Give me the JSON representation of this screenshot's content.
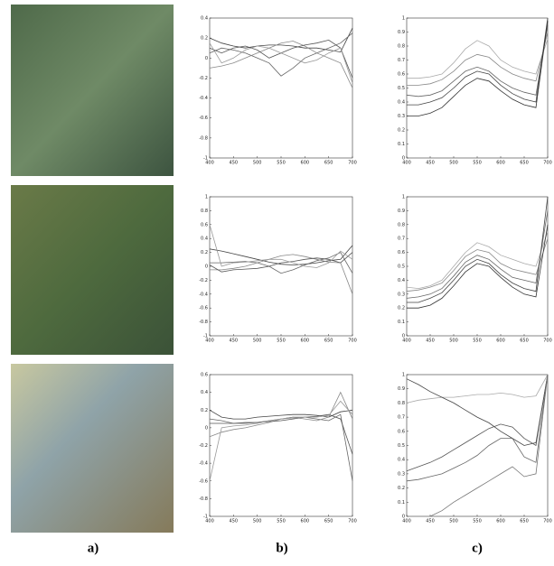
{
  "panel_labels": [
    "a)",
    "b)",
    "c)"
  ],
  "chart_data": [
    {
      "type": "line",
      "x": [
        400,
        425,
        450,
        475,
        500,
        525,
        550,
        575,
        600,
        625,
        650,
        675,
        700
      ],
      "xlim": [
        400,
        700
      ],
      "xticks": [
        400,
        450,
        500,
        550,
        600,
        650,
        700
      ],
      "ylim": [
        -1,
        0.4
      ],
      "yticks": [
        -1,
        -0.8,
        -0.6,
        -0.4,
        -0.2,
        0,
        0.2,
        0.4
      ],
      "series": [
        {
          "color": "#444",
          "values": [
            0.2,
            0.15,
            0.12,
            0.1,
            0.12,
            0.13,
            0.13,
            0.12,
            0.1,
            0.1,
            0.08,
            0.06,
            0.3
          ]
        },
        {
          "color": "#666",
          "values": [
            0.05,
            0.1,
            0.08,
            0.05,
            0,
            -0.05,
            -0.18,
            -0.1,
            0,
            0.05,
            0.1,
            0.15,
            0.25
          ]
        },
        {
          "color": "#888",
          "values": [
            -0.1,
            -0.08,
            -0.05,
            0,
            0.05,
            0.1,
            0.15,
            0.17,
            0.12,
            0.05,
            0,
            -0.05,
            -0.3
          ]
        },
        {
          "color": "#555",
          "values": [
            0.1,
            0.05,
            0.1,
            0.12,
            0.08,
            0,
            0.05,
            0.1,
            0.13,
            0.15,
            0.18,
            0.1,
            -0.2
          ]
        },
        {
          "color": "#999",
          "values": [
            0.15,
            -0.05,
            0,
            0.08,
            0.12,
            0.1,
            0.05,
            0,
            -0.05,
            -0.02,
            0.05,
            0.1,
            -0.25
          ]
        }
      ]
    },
    {
      "type": "line",
      "x": [
        400,
        425,
        450,
        475,
        500,
        525,
        550,
        575,
        600,
        625,
        650,
        675,
        700
      ],
      "xlim": [
        400,
        700
      ],
      "xticks": [
        400,
        450,
        500,
        550,
        600,
        650,
        700
      ],
      "ylim": [
        -1,
        1
      ],
      "yticks": [
        -1,
        -0.8,
        -0.6,
        -0.4,
        -0.2,
        0,
        0.2,
        0.4,
        0.6,
        0.8,
        1
      ],
      "series": [
        {
          "color": "#444",
          "values": [
            0.25,
            0.22,
            0.18,
            0.14,
            0.1,
            0.06,
            0.03,
            0.02,
            0.03,
            0.05,
            0.08,
            0.1,
            0.3
          ]
        },
        {
          "color": "#666",
          "values": [
            0.05,
            0.05,
            0.06,
            0.07,
            0.05,
            0,
            -0.1,
            -0.05,
            0.02,
            0.08,
            0.12,
            0.2,
            -0.1
          ]
        },
        {
          "color": "#888",
          "values": [
            -0.05,
            -0.05,
            -0.03,
            0,
            0.05,
            0.1,
            0.15,
            0.17,
            0.14,
            0.1,
            0.06,
            0.05,
            -0.4
          ]
        },
        {
          "color": "#555",
          "values": [
            0.02,
            -0.08,
            -0.05,
            -0.04,
            -0.03,
            0,
            0.05,
            0.07,
            0.1,
            0.12,
            0.1,
            0.05,
            0.2
          ]
        },
        {
          "color": "#999",
          "values": [
            0.6,
            0,
            0.05,
            0.06,
            0.08,
            0.1,
            0.1,
            0.05,
            0,
            -0.02,
            0.05,
            0.22,
            0.1
          ]
        }
      ]
    },
    {
      "type": "line",
      "x": [
        400,
        425,
        450,
        475,
        500,
        525,
        550,
        575,
        600,
        625,
        650,
        675,
        700
      ],
      "xlim": [
        400,
        700
      ],
      "xticks": [
        400,
        450,
        500,
        550,
        600,
        650,
        700
      ],
      "ylim": [
        -1,
        0.6
      ],
      "yticks": [
        -1,
        -0.8,
        -0.6,
        -0.4,
        -0.2,
        0,
        0.2,
        0.4,
        0.6
      ],
      "series": [
        {
          "color": "#444",
          "values": [
            0.2,
            0.12,
            0.1,
            0.1,
            0.12,
            0.13,
            0.14,
            0.15,
            0.15,
            0.14,
            0.12,
            0.18,
            0.2
          ]
        },
        {
          "color": "#666",
          "values": [
            0.1,
            0.08,
            0.05,
            0.05,
            0.06,
            0.08,
            0.1,
            0.12,
            0.12,
            0.1,
            0.08,
            0.15,
            -0.6
          ]
        },
        {
          "color": "#888",
          "values": [
            -0.1,
            -0.05,
            -0.02,
            0,
            0.03,
            0.06,
            0.1,
            0.12,
            0.1,
            0.08,
            0.12,
            0.4,
            0.1
          ]
        },
        {
          "color": "#555",
          "values": [
            0.05,
            0.05,
            0.05,
            0.06,
            0.06,
            0.07,
            0.08,
            0.1,
            0.12,
            0.13,
            0.15,
            0.1,
            -0.3
          ]
        },
        {
          "color": "#999",
          "values": [
            -0.6,
            0,
            0.02,
            0.03,
            0.05,
            0.08,
            0.1,
            0.11,
            0.12,
            0.12,
            0.14,
            0.3,
            0.15
          ]
        }
      ]
    },
    {
      "type": "line",
      "x": [
        400,
        425,
        450,
        475,
        500,
        525,
        550,
        575,
        600,
        625,
        650,
        675,
        700
      ],
      "xlim": [
        400,
        700
      ],
      "xticks": [
        400,
        450,
        500,
        550,
        600,
        650,
        700
      ],
      "ylim": [
        0,
        1
      ],
      "yticks": [
        0,
        0.1,
        0.2,
        0.3,
        0.4,
        0.5,
        0.6,
        0.7,
        0.8,
        0.9,
        1
      ],
      "series": [
        {
          "color": "#aaa",
          "values": [
            0.57,
            0.57,
            0.58,
            0.6,
            0.68,
            0.78,
            0.84,
            0.8,
            0.7,
            0.65,
            0.62,
            0.6,
            0.85
          ]
        },
        {
          "color": "#888",
          "values": [
            0.52,
            0.52,
            0.53,
            0.56,
            0.62,
            0.7,
            0.74,
            0.72,
            0.65,
            0.6,
            0.57,
            0.55,
            0.9
          ]
        },
        {
          "color": "#666",
          "values": [
            0.45,
            0.44,
            0.45,
            0.48,
            0.55,
            0.62,
            0.65,
            0.62,
            0.55,
            0.5,
            0.47,
            0.45,
            0.95
          ]
        },
        {
          "color": "#444",
          "values": [
            0.38,
            0.38,
            0.4,
            0.43,
            0.5,
            0.58,
            0.62,
            0.6,
            0.52,
            0.46,
            0.42,
            0.4,
            1
          ]
        },
        {
          "color": "#333",
          "values": [
            0.3,
            0.3,
            0.32,
            0.36,
            0.44,
            0.52,
            0.57,
            0.55,
            0.48,
            0.42,
            0.38,
            0.36,
            0.98
          ]
        }
      ]
    },
    {
      "type": "line",
      "x": [
        400,
        425,
        450,
        475,
        500,
        525,
        550,
        575,
        600,
        625,
        650,
        675,
        700
      ],
      "xlim": [
        400,
        700
      ],
      "xticks": [
        400,
        450,
        500,
        550,
        600,
        650,
        700
      ],
      "ylim": [
        0,
        1
      ],
      "yticks": [
        0,
        0.1,
        0.2,
        0.3,
        0.4,
        0.5,
        0.6,
        0.7,
        0.8,
        0.9,
        1
      ],
      "series": [
        {
          "color": "#aaa",
          "values": [
            0.35,
            0.34,
            0.36,
            0.4,
            0.5,
            0.6,
            0.67,
            0.64,
            0.58,
            0.55,
            0.52,
            0.5,
            0.75
          ]
        },
        {
          "color": "#888",
          "values": [
            0.32,
            0.33,
            0.35,
            0.38,
            0.47,
            0.57,
            0.62,
            0.6,
            0.52,
            0.48,
            0.46,
            0.44,
            0.7
          ]
        },
        {
          "color": "#666",
          "values": [
            0.27,
            0.28,
            0.3,
            0.34,
            0.43,
            0.53,
            0.58,
            0.55,
            0.48,
            0.42,
            0.4,
            0.38,
            0.9
          ]
        },
        {
          "color": "#444",
          "values": [
            0.24,
            0.24,
            0.27,
            0.31,
            0.4,
            0.5,
            0.55,
            0.52,
            0.44,
            0.38,
            0.34,
            0.32,
            1
          ]
        },
        {
          "color": "#333",
          "values": [
            0.2,
            0.2,
            0.22,
            0.27,
            0.36,
            0.46,
            0.52,
            0.5,
            0.42,
            0.35,
            0.3,
            0.28,
            0.8
          ]
        }
      ]
    },
    {
      "type": "line",
      "x": [
        400,
        425,
        450,
        475,
        500,
        525,
        550,
        575,
        600,
        625,
        650,
        675,
        700
      ],
      "xlim": [
        400,
        700
      ],
      "xticks": [
        400,
        450,
        500,
        550,
        600,
        650,
        700
      ],
      "ylim": [
        0,
        1
      ],
      "yticks": [
        0,
        0.1,
        0.2,
        0.3,
        0.4,
        0.5,
        0.6,
        0.7,
        0.8,
        0.9,
        1
      ],
      "series": [
        {
          "color": "#aaa",
          "values": [
            0.8,
            0.82,
            0.83,
            0.84,
            0.84,
            0.85,
            0.86,
            0.86,
            0.87,
            0.86,
            0.84,
            0.85,
            1
          ]
        },
        {
          "color": "#444",
          "values": [
            0.97,
            0.93,
            0.88,
            0.84,
            0.8,
            0.75,
            0.7,
            0.66,
            0.6,
            0.55,
            0.5,
            0.52,
            1
          ]
        },
        {
          "color": "#555",
          "values": [
            0.32,
            0.35,
            0.38,
            0.42,
            0.47,
            0.52,
            0.57,
            0.62,
            0.65,
            0.63,
            0.55,
            0.5,
            1
          ]
        },
        {
          "color": "#666",
          "values": [
            0.25,
            0.26,
            0.28,
            0.3,
            0.34,
            0.38,
            0.43,
            0.5,
            0.55,
            0.55,
            0.42,
            0.38,
            1
          ]
        },
        {
          "color": "#777",
          "values": [
            null,
            null,
            0,
            0.04,
            0.1,
            0.15,
            0.2,
            0.25,
            0.3,
            0.35,
            0.28,
            0.3,
            1
          ]
        }
      ]
    }
  ]
}
